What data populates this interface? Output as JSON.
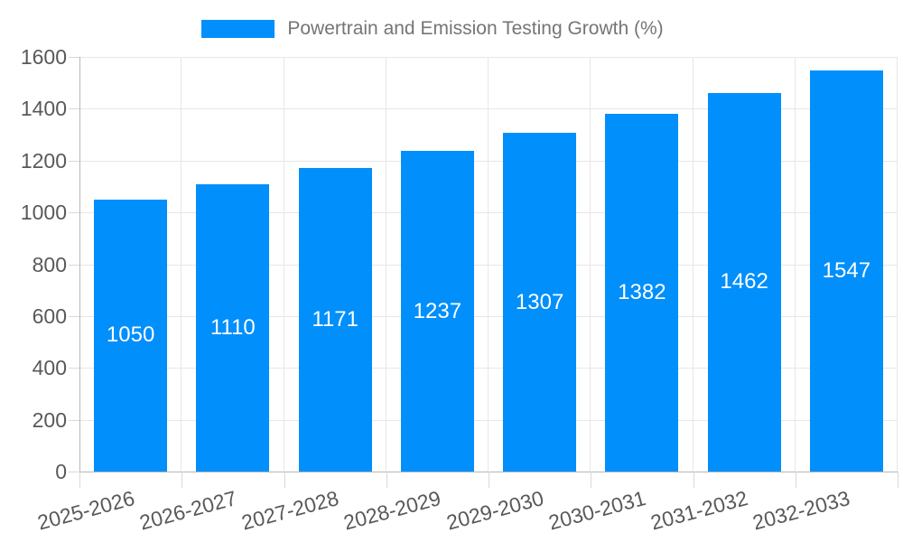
{
  "chart_data": {
    "type": "bar",
    "title": "Powertrain and Emission Testing Growth (%)",
    "legend": [
      "Powertrain and Emission Testing Growth (%)"
    ],
    "legend_position": "top",
    "categories": [
      "2025-2026",
      "2026-2027",
      "2027-2028",
      "2028-2029",
      "2029-2030",
      "2030-2031",
      "2031-2032",
      "2032-2033"
    ],
    "values": [
      1050,
      1110,
      1171,
      1237,
      1307,
      1382,
      1462,
      1547
    ],
    "xlabel": "",
    "ylabel": "",
    "ylim": [
      0,
      1600
    ],
    "ytick_step": 200,
    "y_ticks": [
      0,
      200,
      400,
      600,
      800,
      1000,
      1200,
      1400,
      1600
    ],
    "grid": true,
    "value_labels_position": "center-inside",
    "bar_color": "#008FFB",
    "value_label_color": "#ffffff",
    "axis_label_color": "#595959",
    "legend_text_color": "#757575",
    "gridline_color": "#e7e7e7",
    "axis_line_color": "#b6b6b6"
  }
}
